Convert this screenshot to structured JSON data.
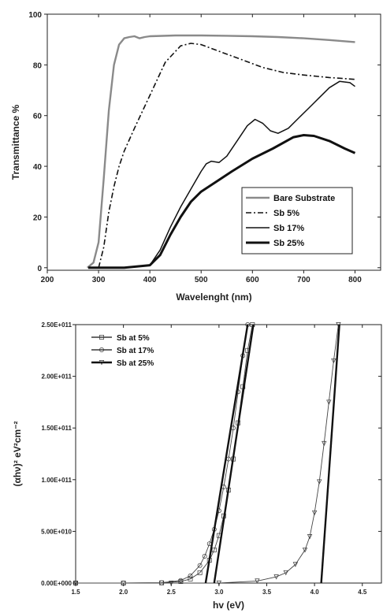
{
  "chart_data": [
    {
      "type": "line",
      "xlabel": "Wavelenght (nm)",
      "ylabel": "Transmittance %",
      "xlim": [
        200,
        850
      ],
      "ylim": [
        -1,
        100
      ],
      "xticks": [
        200,
        300,
        400,
        500,
        600,
        700,
        800
      ],
      "yticks": [
        0,
        20,
        40,
        60,
        80,
        100
      ],
      "xtick_labels": [
        "200",
        "300",
        "400",
        "500",
        "600",
        "700",
        "800"
      ],
      "ytick_labels": [
        "0",
        "20",
        "40",
        "60",
        "80",
        "100"
      ],
      "legend_position": "bottom-right",
      "series": [
        {
          "name": "Bare Substrate",
          "color": "#8a8a8a",
          "style": "solid",
          "x": [
            278,
            290,
            300,
            310,
            320,
            330,
            340,
            350,
            360,
            370,
            380,
            390,
            400,
            450,
            500,
            550,
            600,
            650,
            700,
            750,
            800
          ],
          "y": [
            0,
            2,
            10,
            35,
            62,
            80,
            88,
            90.5,
            91,
            91.3,
            90.5,
            91,
            91.3,
            91.6,
            91.6,
            91.5,
            91.3,
            91,
            90.5,
            89.8,
            89
          ]
        },
        {
          "name": "Sb  5%",
          "color": "#111111",
          "style": "dashdot",
          "x": [
            300,
            310,
            320,
            330,
            340,
            350,
            370,
            400,
            430,
            460,
            480,
            500,
            540,
            580,
            620,
            660,
            700,
            750,
            800
          ],
          "y": [
            0,
            8,
            22,
            32,
            40,
            46,
            55,
            68,
            81,
            87.5,
            88.5,
            88,
            85,
            82,
            79,
            77,
            76,
            75,
            74.3
          ]
        },
        {
          "name": "Sb 17%",
          "color": "#111111",
          "style": "solid",
          "x": [
            280,
            350,
            400,
            420,
            440,
            460,
            480,
            500,
            510,
            520,
            535,
            550,
            570,
            590,
            605,
            620,
            635,
            650,
            670,
            690,
            710,
            730,
            750,
            770,
            790,
            800
          ],
          "y": [
            0,
            0,
            1,
            7,
            16,
            24,
            31,
            38,
            41,
            42,
            41.5,
            44,
            50,
            56,
            58.5,
            57,
            54,
            53,
            55,
            59,
            63,
            67,
            71,
            73.5,
            73,
            71.5
          ]
        },
        {
          "name": "Sb 25%",
          "color": "#111111",
          "style": "bold",
          "x": [
            280,
            350,
            400,
            420,
            440,
            460,
            480,
            500,
            530,
            560,
            600,
            640,
            680,
            700,
            720,
            750,
            780,
            800
          ],
          "y": [
            0,
            0,
            1,
            5,
            13,
            20,
            26,
            30,
            34,
            38,
            43,
            47,
            51.5,
            52.3,
            52,
            50,
            47,
            45.2
          ]
        }
      ]
    },
    {
      "type": "scatter",
      "xlabel": "hv (eV)",
      "ylabel": "(αhν)² eV²cm⁻²",
      "xlim": [
        1.5,
        4.7
      ],
      "ylim": [
        0,
        250000000000.0
      ],
      "xticks": [
        1.5,
        2.0,
        2.5,
        3.0,
        3.5,
        4.0,
        4.5
      ],
      "yticks": [
        0,
        50000000000.0,
        100000000000.0,
        150000000000.0,
        200000000000.0,
        250000000000.0
      ],
      "xtick_labels": [
        "1.5",
        "2.0",
        "2.5",
        "3.0",
        "3.5",
        "4.0",
        "4.5"
      ],
      "ytick_labels": [
        "0.00E+000",
        "5.00E+010",
        "1.00E+011",
        "1.50E+011",
        "2.00E+011",
        "2.50E+011"
      ],
      "legend_position": "top-left",
      "series": [
        {
          "name": "Sb at   5%",
          "marker": "square",
          "x": [
            1.5,
            2.0,
            2.4,
            2.6,
            2.7,
            2.8,
            2.9,
            2.95,
            3.0,
            3.05,
            3.1,
            3.15,
            3.2,
            3.25,
            3.3,
            3.35
          ],
          "y": [
            0,
            0,
            200000000.0,
            1500000000.0,
            4000000000.0,
            10000000000.0,
            22000000000.0,
            32000000000.0,
            46000000000.0,
            65000000000.0,
            90000000000.0,
            120000000000.0,
            155000000000.0,
            190000000000.0,
            225000000000.0,
            250000000000.0
          ]
        },
        {
          "name": "Sb at 17%",
          "marker": "circle",
          "x": [
            1.5,
            2.0,
            2.4,
            2.6,
            2.7,
            2.8,
            2.85,
            2.9,
            2.95,
            3.0,
            3.05,
            3.1,
            3.15,
            3.2,
            3.25,
            3.3
          ],
          "y": [
            0,
            0,
            300000000.0,
            2500000000.0,
            7000000000.0,
            17000000000.0,
            26000000000.0,
            38000000000.0,
            52000000000.0,
            70000000000.0,
            93000000000.0,
            120000000000.0,
            150000000000.0,
            185000000000.0,
            220000000000.0,
            250000000000.0
          ]
        },
        {
          "name": "Sb at 25%",
          "marker": "triangle-down",
          "x": [
            1.5,
            2.5,
            3.0,
            3.4,
            3.6,
            3.7,
            3.8,
            3.9,
            3.95,
            4.0,
            4.05,
            4.1,
            4.15,
            4.2,
            4.25
          ],
          "y": [
            0,
            0,
            100000000.0,
            2000000000.0,
            6000000000.0,
            10000000000.0,
            18000000000.0,
            32000000000.0,
            45000000000.0,
            68000000000.0,
            98000000000.0,
            135000000000.0,
            175000000000.0,
            215000000000.0,
            250000000000.0
          ]
        }
      ],
      "fit_lines": [
        {
          "x": [
            2.95,
            3.36
          ],
          "y": [
            0,
            250000000000.0
          ]
        },
        {
          "x": [
            2.86,
            3.3
          ],
          "y": [
            0,
            250000000000.0
          ]
        },
        {
          "x": [
            4.07,
            4.26
          ],
          "y": [
            0,
            250000000000.0
          ]
        }
      ]
    }
  ]
}
